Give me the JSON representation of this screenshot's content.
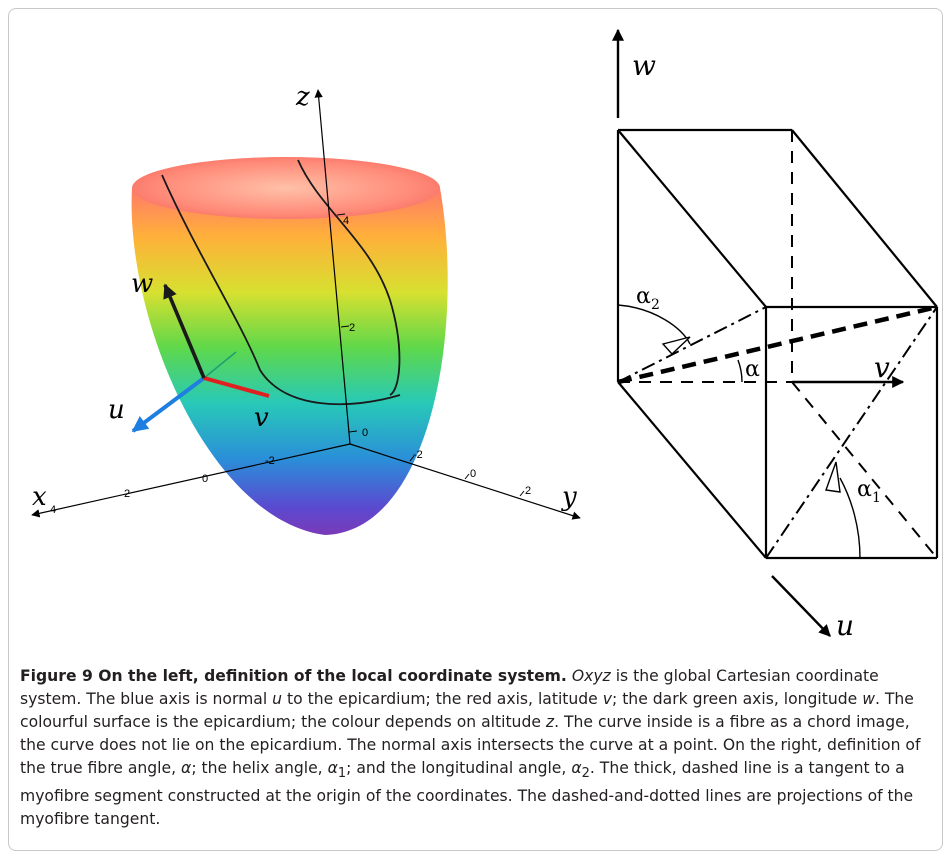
{
  "left_panel": {
    "axes": {
      "x": "x",
      "y": "y",
      "z": "z",
      "u": "u",
      "v": "v",
      "w": "w"
    },
    "ticks": {
      "z": [
        "4",
        "2",
        "0"
      ],
      "x": [
        "4",
        "2",
        "0",
        "-2"
      ],
      "y": [
        "-2",
        "0",
        "2"
      ]
    },
    "colors": {
      "u_axis": "#1e7fe0",
      "v_axis": "#e02020",
      "w_axis": "#1a1a1a",
      "normal_ext": "#1ea070"
    }
  },
  "right_panel": {
    "labels": {
      "w": "w",
      "v": "v",
      "u": "u"
    },
    "angles": {
      "alpha": "α",
      "alpha2_base": "α",
      "alpha2_sub": "2",
      "alpha1_base": "α",
      "alpha1_sub": "1"
    }
  },
  "caption": {
    "title": "Figure 9 On the left, definition of the local coordinate system.",
    "p1_oxyz": "Oxyz",
    "p1_text": " is the global Cartesian coordinate system. The blue axis is normal ",
    "p1_u": "u",
    "p1_text2": " to the epicardium; the red axis, latitude ",
    "p1_v": "v",
    "p1_text3": "; the dark green axis, longitude ",
    "p1_w": "w",
    "p1_text4": ". The colourful surface is the epicardium; the colour depends on altitude ",
    "p1_z": "z",
    "p1_text5": ". The curve inside is a fibre as a chord image, the curve does not lie on the epicardium. The normal axis intersects the curve at a point. On the right, definition of the true fibre angle, ",
    "p1_alpha": "α",
    "p1_text6": "; the helix angle, ",
    "p1_alpha1": "α",
    "p1_alpha1_sub": "1",
    "p1_text7": "; and the longitudinal angle, ",
    "p1_alpha2": "α",
    "p1_alpha2_sub": "2",
    "p1_text8": ". The thick, dashed line is a tangent to a myofibre segment constructed at the origin of the coordinates. The dashed-and-dotted lines are projections of the myofibre tangent."
  }
}
